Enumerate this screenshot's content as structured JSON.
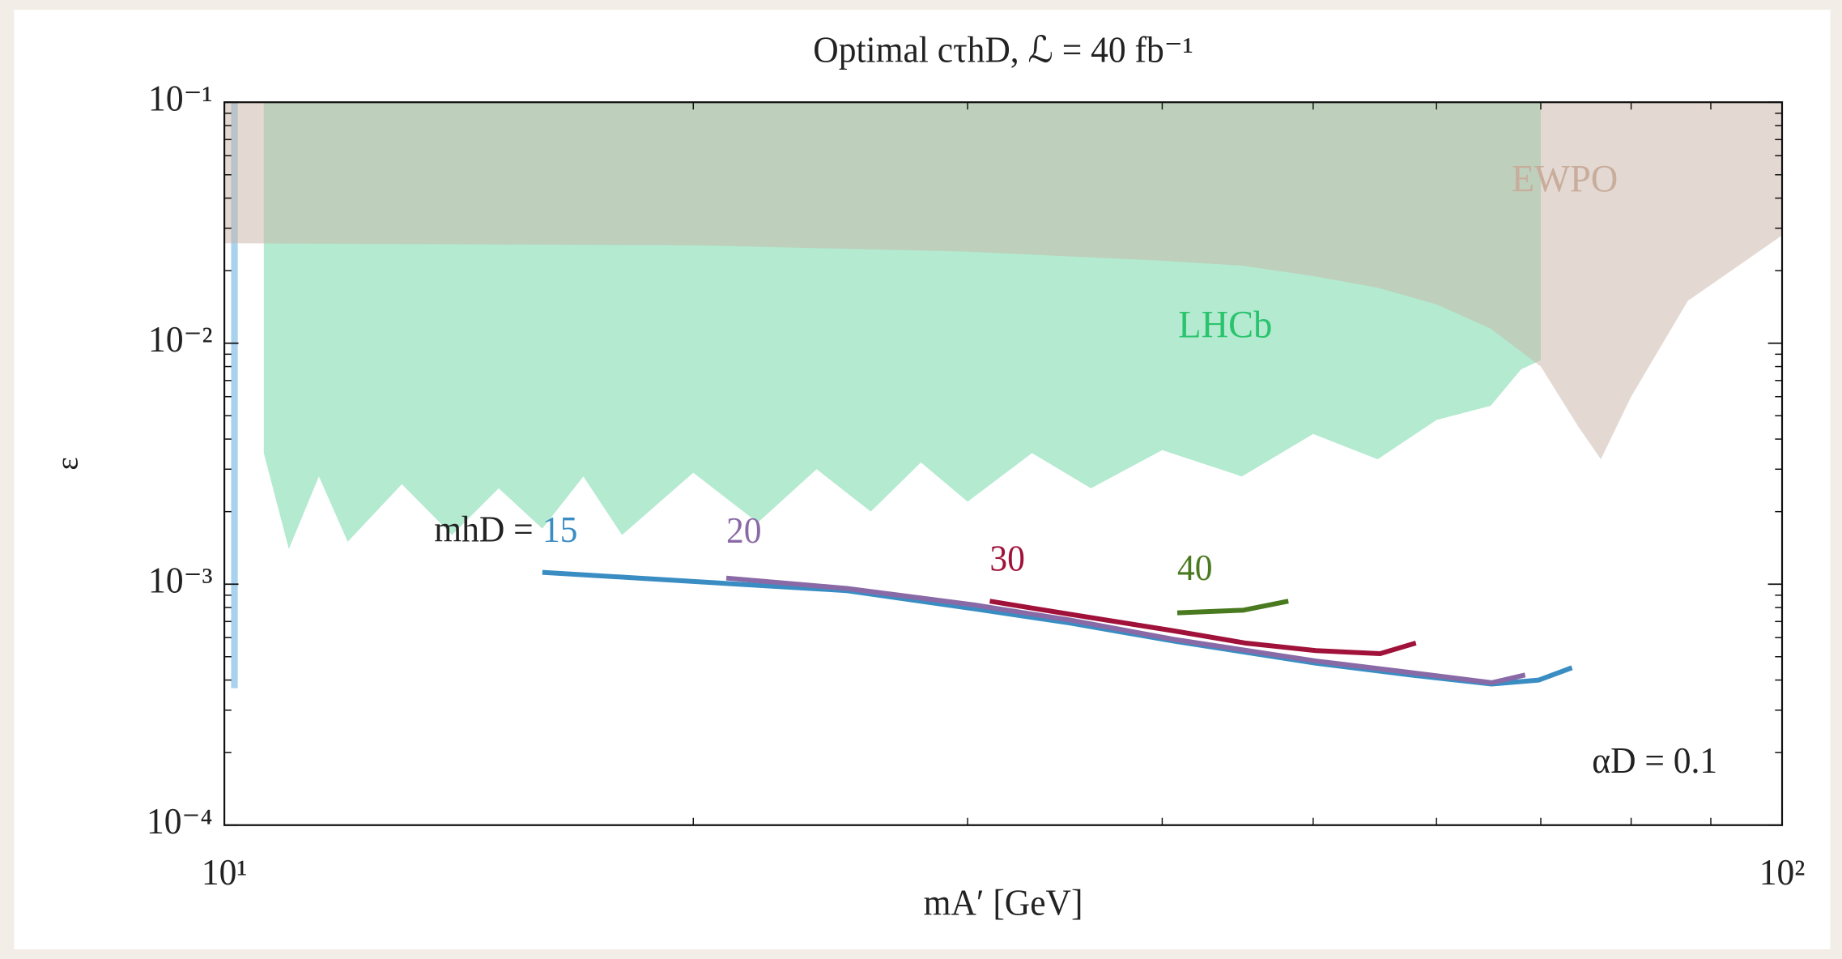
{
  "chart_data": {
    "type": "line",
    "title": "Optimal cτhD, ℒ = 40 fb⁻¹",
    "xlabel": "mA′ [GeV]",
    "ylabel": "ε",
    "xscale": "log",
    "yscale": "log",
    "xlim": [
      10,
      100
    ],
    "ylim": [
      0.0001,
      0.1
    ],
    "xticks": [
      {
        "value": 10,
        "label": "10¹"
      },
      {
        "value": 100,
        "label": "10²"
      }
    ],
    "yticks": [
      {
        "value": 0.0001,
        "label": "10⁻⁴"
      },
      {
        "value": 0.001,
        "label": "10⁻³"
      },
      {
        "value": 0.01,
        "label": "10⁻²"
      },
      {
        "value": 0.1,
        "label": "10⁻¹"
      }
    ],
    "xminorticks": [
      20,
      30,
      40,
      50,
      60,
      70,
      80,
      90
    ],
    "yminorticks": [
      0.0002,
      0.0003,
      0.0004,
      0.0005,
      0.0006,
      0.0007,
      0.0008,
      0.0009,
      0.002,
      0.003,
      0.004,
      0.005,
      0.006,
      0.007,
      0.008,
      0.009,
      0.02,
      0.03,
      0.04,
      0.05,
      0.06,
      0.07,
      0.08,
      0.09
    ],
    "regions": [
      {
        "color": "#a9d2ee",
        "x": [
          10.1,
          10.2
        ],
        "lower": [
          0.00037,
          0.00037
        ]
      },
      {
        "name": "LHCb",
        "color": "#b3ead0",
        "label_color": "#2bc46e",
        "x": [
          10.6,
          11,
          11.5,
          12,
          13,
          14,
          15,
          16,
          17,
          18,
          20,
          22,
          24,
          26,
          28,
          30,
          33,
          36,
          40,
          45,
          50,
          55,
          60,
          65,
          68,
          70
        ],
        "lower": [
          0.0035,
          0.0014,
          0.0028,
          0.0015,
          0.0026,
          0.0016,
          0.0025,
          0.0017,
          0.0028,
          0.0016,
          0.0029,
          0.0018,
          0.003,
          0.002,
          0.0032,
          0.0022,
          0.0035,
          0.0025,
          0.0036,
          0.0028,
          0.0042,
          0.0033,
          0.0048,
          0.0055,
          0.0078,
          0.0085
        ]
      },
      {
        "name": "EWPO",
        "color": "#c9b3a6",
        "label_color": "#c9ad9c",
        "x": [
          10,
          20,
          30,
          40,
          45,
          50,
          55,
          60,
          65,
          70,
          74,
          76.5,
          80,
          87,
          100
        ],
        "lower": [
          0.026,
          0.0255,
          0.024,
          0.022,
          0.021,
          0.019,
          0.017,
          0.0145,
          0.0115,
          0.008,
          0.0045,
          0.0033,
          0.006,
          0.015,
          0.028
        ]
      }
    ],
    "series": [
      {
        "name": "15",
        "color": "#3a8dc3",
        "x": [
          16,
          20.3,
          25.1,
          30.3,
          34.9,
          40.7,
          50.2,
          57.7,
          65.1,
          69.8,
          73.3
        ],
        "values": [
          0.00112,
          0.00102,
          0.00094,
          0.00079,
          0.00069,
          0.00058,
          0.00047,
          0.00042,
          0.000385,
          0.0004,
          0.00045
        ]
      },
      {
        "name": "20",
        "color": "#8a6aa6",
        "x": [
          21,
          25.1,
          30.3,
          34.9,
          40.7,
          50.2,
          57.7,
          65.1,
          68.4
        ],
        "values": [
          0.00106,
          0.00096,
          0.00082,
          0.00071,
          0.00059,
          0.00048,
          0.00043,
          0.00039,
          0.00042
        ]
      },
      {
        "name": "30",
        "color": "#a0123a",
        "x": [
          31,
          34.9,
          40.7,
          45.2,
          50.2,
          55.2,
          58.2
        ],
        "values": [
          0.00085,
          0.00075,
          0.00064,
          0.00057,
          0.00053,
          0.000515,
          0.00057
        ]
      },
      {
        "name": "40",
        "color": "#4a7a1f",
        "x": [
          40.9,
          45.1,
          48.2
        ],
        "values": [
          0.00076,
          0.00078,
          0.00085
        ]
      }
    ],
    "annotations": [
      "mhD =",
      "αD = 0.1"
    ]
  }
}
